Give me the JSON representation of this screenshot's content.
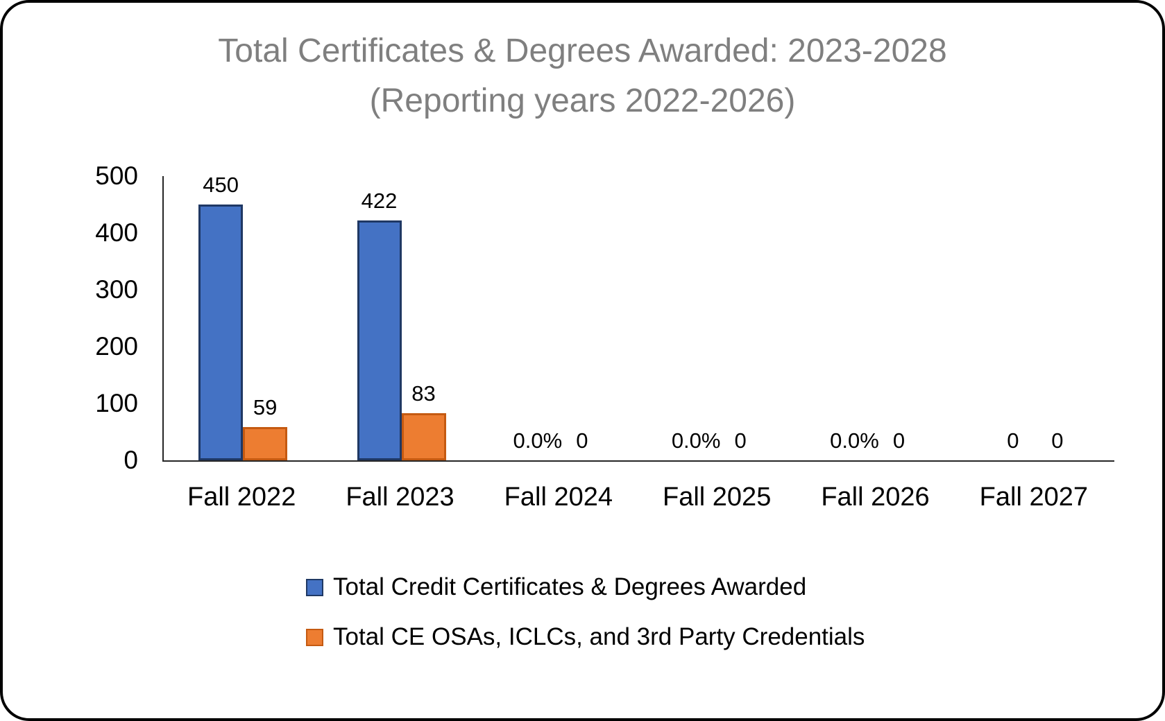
{
  "chart_data": {
    "type": "bar",
    "title": "Total Certificates & Degrees Awarded: 2023-2028 (Reporting years 2022-2026)",
    "title_lines": [
      "Total Certificates & Degrees Awarded: 2023-2028",
      "(Reporting years 2022-2026)"
    ],
    "title_color": "#7F7F7F",
    "categories": [
      "Fall 2022",
      "Fall 2023",
      "Fall 2024",
      "Fall 2025",
      "Fall 2026",
      "Fall 2027"
    ],
    "series": [
      {
        "name": "Total Credit Certificates & Degrees Awarded",
        "color": "#4472C4",
        "border_color": "#1F3864",
        "values": [
          450,
          422,
          0,
          0,
          0,
          0
        ],
        "labels": [
          "450",
          "422",
          "0.0%",
          "0.0%",
          "0.0%",
          "0"
        ]
      },
      {
        "name": "Total CE OSAs, ICLCs, and 3rd Party Credentials",
        "color": "#ED7D31",
        "border_color": "#C55A11",
        "values": [
          59,
          83,
          0,
          0,
          0,
          0
        ],
        "labels": [
          "59",
          "83",
          "0",
          "0",
          "0",
          "0"
        ]
      }
    ],
    "xlabel": "",
    "ylabel": "",
    "ylim": [
      0,
      500
    ],
    "yticks": [
      0,
      100,
      200,
      300,
      400,
      500
    ],
    "grid": false,
    "legend_position": "bottom-left",
    "axis_color": "#262626"
  }
}
